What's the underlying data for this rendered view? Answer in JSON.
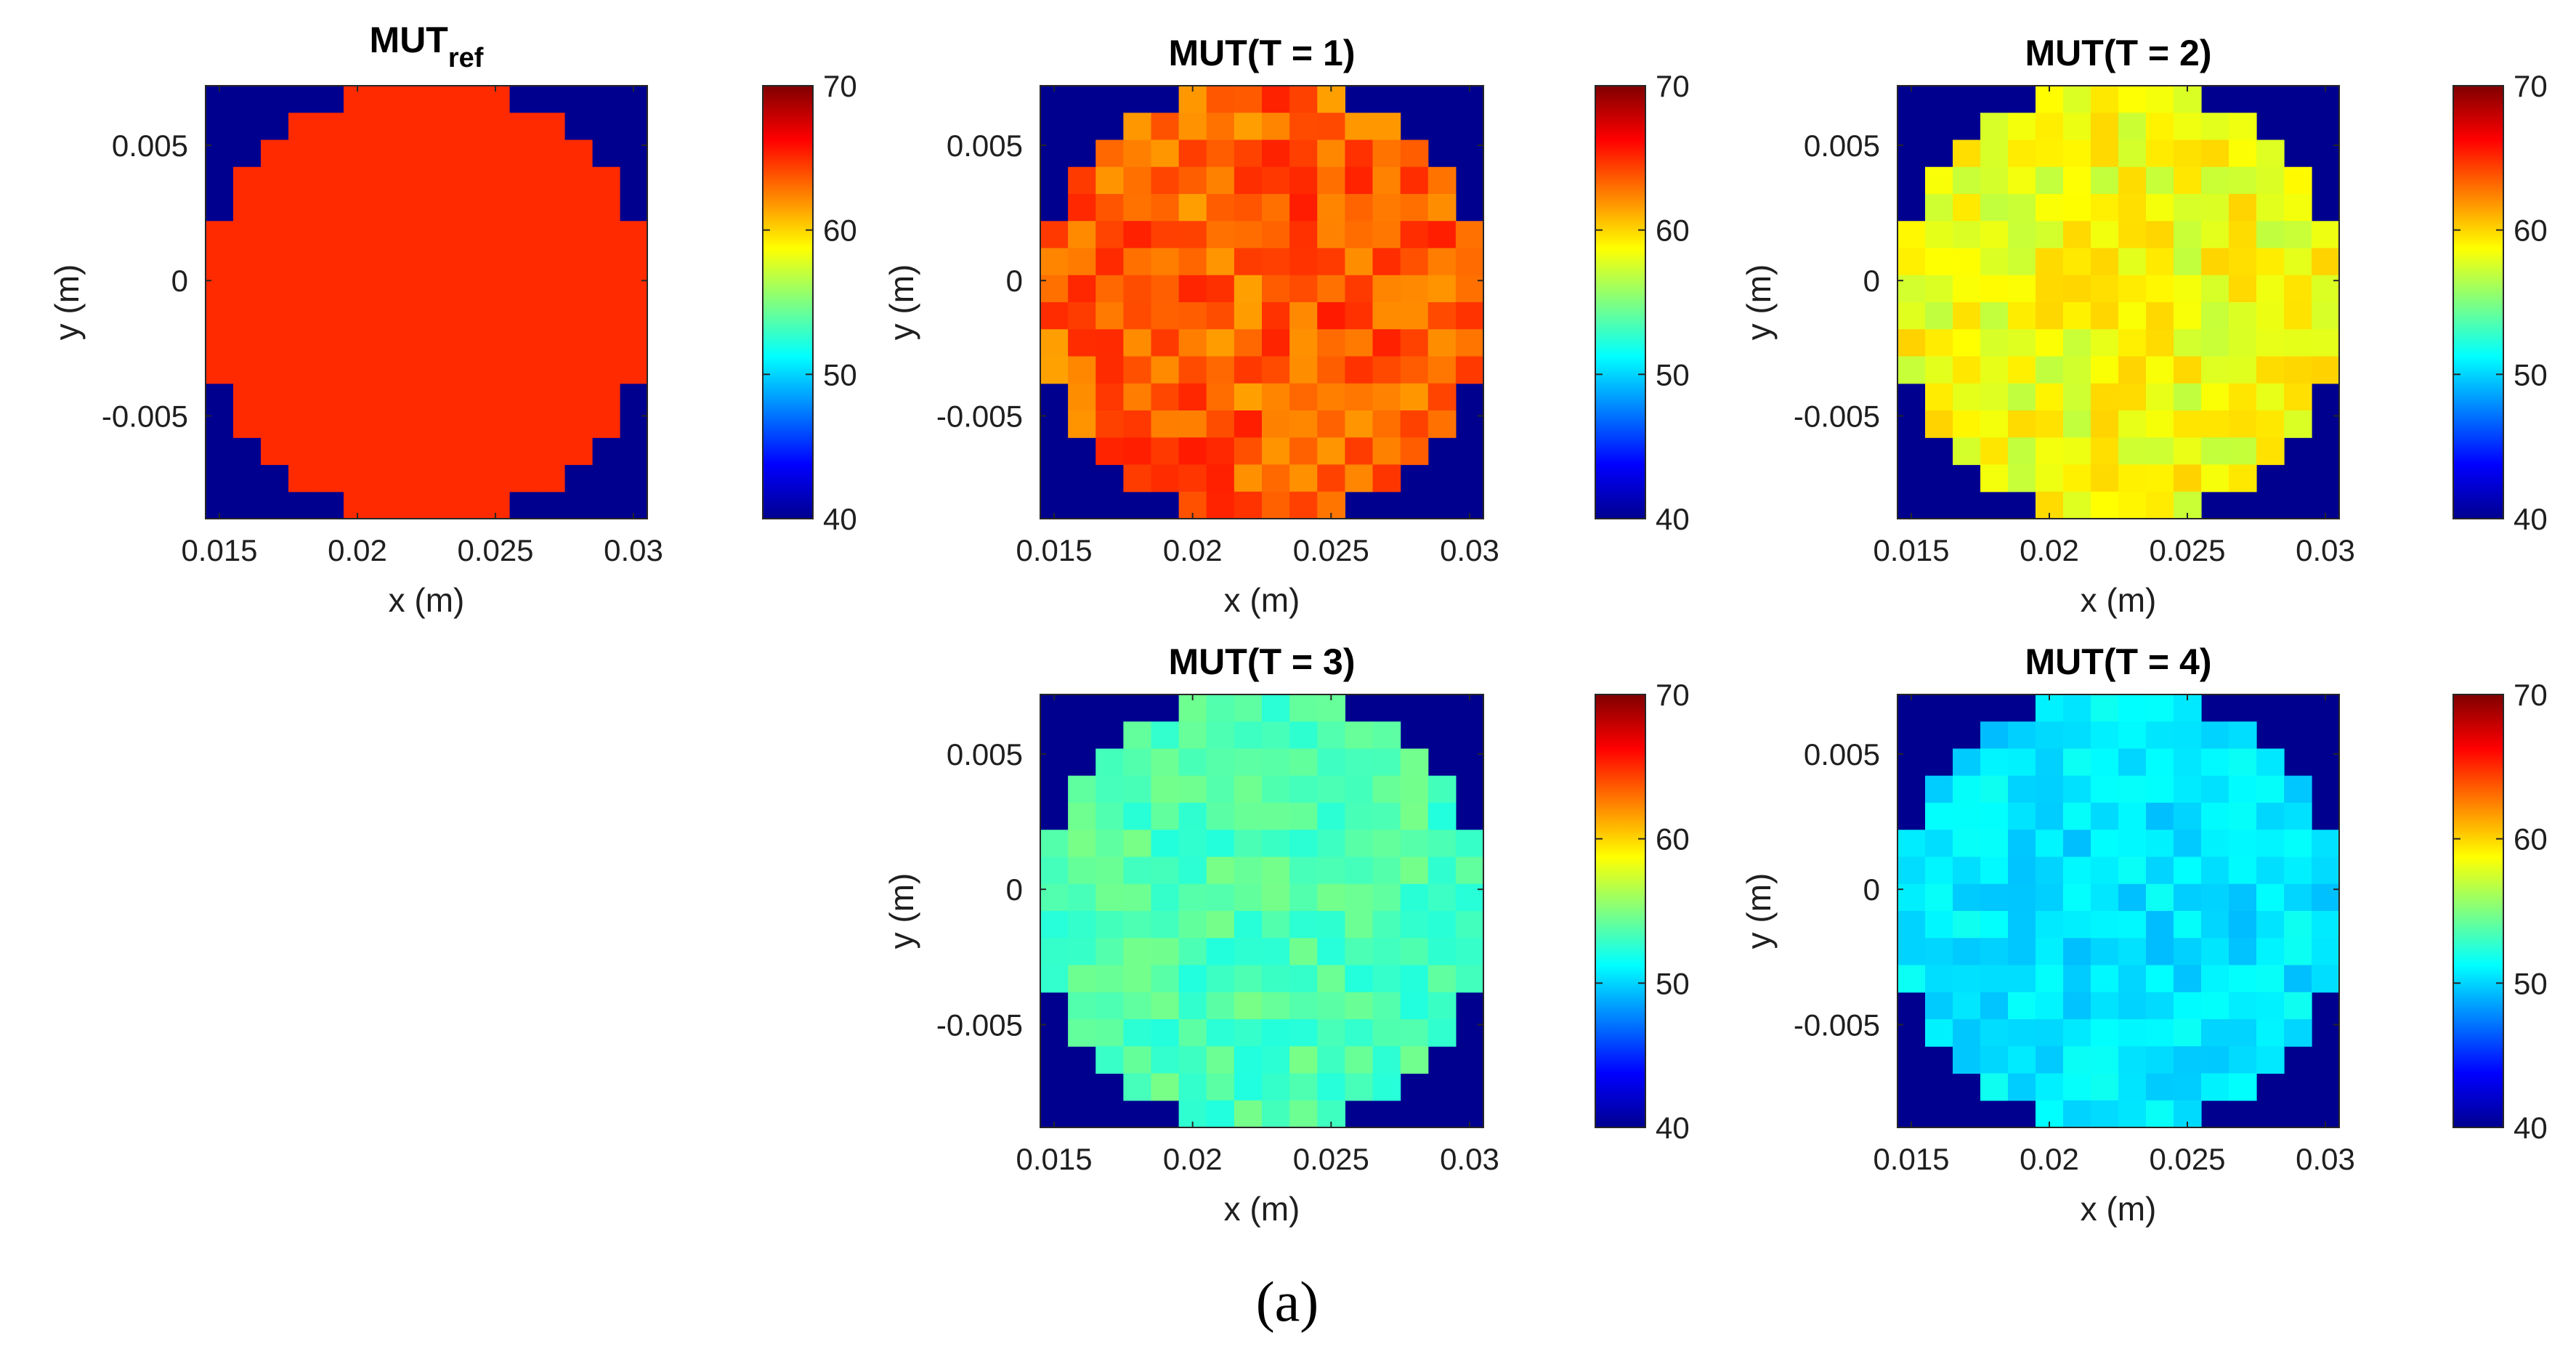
{
  "figure_caption": "(a)",
  "colormap": "jet",
  "background_color": "#00008f",
  "chart_data": [
    {
      "type": "heatmap",
      "title": "MUT",
      "title_subscript": "ref",
      "xlabel": "x (m)",
      "ylabel": "y (m)",
      "xlim": [
        0.0145,
        0.0305
      ],
      "ylim": [
        -0.0088,
        0.0072
      ],
      "xticks": [
        0.015,
        0.02,
        0.025,
        0.03
      ],
      "xtick_labels": [
        "0.015",
        "0.02",
        "0.025",
        "0.03"
      ],
      "yticks": [
        0.005,
        0,
        -0.005
      ],
      "ytick_labels": [
        "0.005",
        "0",
        "-0.005"
      ],
      "grid": 16,
      "outside_value": 40,
      "inside_value": 65,
      "inside_variation": 0,
      "colorbar": {
        "range": [
          40,
          70
        ],
        "ticks": [
          40,
          50,
          60,
          70
        ],
        "tick_labels": [
          "40",
          "50",
          "60",
          "70"
        ]
      }
    },
    {
      "type": "heatmap",
      "title": "MUT(T = 1)",
      "xlabel": "x (m)",
      "ylabel": "y (m)",
      "xlim": [
        0.0145,
        0.0305
      ],
      "ylim": [
        -0.0088,
        0.0072
      ],
      "xticks": [
        0.015,
        0.02,
        0.025,
        0.03
      ],
      "xtick_labels": [
        "0.015",
        "0.02",
        "0.025",
        "0.03"
      ],
      "yticks": [
        0.005,
        0,
        -0.005
      ],
      "ytick_labels": [
        "0.005",
        "0",
        "-0.005"
      ],
      "grid": 16,
      "outside_value": 40,
      "inside_value": 63.5,
      "inside_variation": 2.0,
      "colorbar": {
        "range": [
          40,
          70
        ],
        "ticks": [
          40,
          50,
          60,
          70
        ],
        "tick_labels": [
          "40",
          "50",
          "60",
          "70"
        ]
      }
    },
    {
      "type": "heatmap",
      "title": "MUT(T = 2)",
      "xlabel": "x (m)",
      "ylabel": "y (m)",
      "xlim": [
        0.0145,
        0.0305
      ],
      "ylim": [
        -0.0088,
        0.0072
      ],
      "xticks": [
        0.015,
        0.02,
        0.025,
        0.03
      ],
      "xtick_labels": [
        "0.015",
        "0.02",
        "0.025",
        "0.03"
      ],
      "yticks": [
        0.005,
        0,
        -0.005
      ],
      "ytick_labels": [
        "0.005",
        "0",
        "-0.005"
      ],
      "grid": 16,
      "outside_value": 40,
      "inside_value": 58.5,
      "inside_variation": 1.6,
      "colorbar": {
        "range": [
          40,
          70
        ],
        "ticks": [
          40,
          50,
          60,
          70
        ],
        "tick_labels": [
          "40",
          "50",
          "60",
          "70"
        ]
      }
    },
    {
      "type": "heatmap",
      "title": "MUT(T = 3)",
      "xlabel": "x (m)",
      "ylabel": "y (m)",
      "xlim": [
        0.0145,
        0.0305
      ],
      "ylim": [
        -0.0088,
        0.0072
      ],
      "xticks": [
        0.015,
        0.02,
        0.025,
        0.03
      ],
      "xtick_labels": [
        "0.015",
        "0.02",
        "0.025",
        "0.03"
      ],
      "yticks": [
        0.005,
        0,
        -0.005
      ],
      "ytick_labels": [
        "0.005",
        "0",
        "-0.005"
      ],
      "grid": 16,
      "outside_value": 40,
      "inside_value": 53.5,
      "inside_variation": 1.3,
      "colorbar": {
        "range": [
          40,
          70
        ],
        "ticks": [
          40,
          50,
          60,
          70
        ],
        "tick_labels": [
          "40",
          "50",
          "60",
          "70"
        ]
      }
    },
    {
      "type": "heatmap",
      "title": "MUT(T = 4)",
      "xlabel": "x (m)",
      "ylabel": "y (m)",
      "xlim": [
        0.0145,
        0.0305
      ],
      "ylim": [
        -0.0088,
        0.0072
      ],
      "xticks": [
        0.015,
        0.02,
        0.025,
        0.03
      ],
      "xtick_labels": [
        "0.015",
        "0.02",
        "0.025",
        "0.03"
      ],
      "yticks": [
        0.005,
        0,
        -0.005
      ],
      "ytick_labels": [
        "0.005",
        "0",
        "-0.005"
      ],
      "grid": 16,
      "outside_value": 40,
      "inside_value": 50.5,
      "inside_variation": 1.2,
      "colorbar": {
        "range": [
          40,
          70
        ],
        "ticks": [
          40,
          50,
          60,
          70
        ],
        "tick_labels": [
          "40",
          "50",
          "60",
          "70"
        ]
      }
    }
  ]
}
